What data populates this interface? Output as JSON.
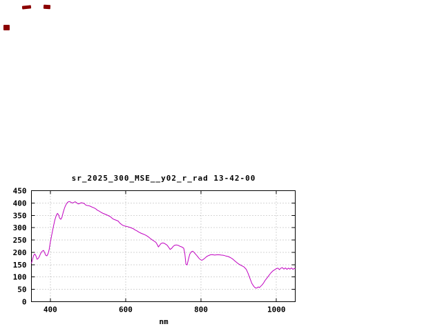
{
  "decor": {
    "artifact_color": "#8b0000"
  },
  "chart_data": {
    "type": "line",
    "title": "sr_2025_300_MSE__y02_r_rad 13-42-00",
    "xlabel": "nm",
    "ylabel": "",
    "xlim": [
      350,
      1050
    ],
    "ylim": [
      0,
      450
    ],
    "xticks": [
      400,
      600,
      800,
      1000
    ],
    "yticks": [
      0,
      50,
      100,
      150,
      200,
      250,
      300,
      350,
      400,
      450
    ],
    "grid": true,
    "legend": false,
    "line_color": "#c000c0",
    "series": [
      {
        "points": [
          [
            350,
            155
          ],
          [
            353,
            172
          ],
          [
            356,
            188
          ],
          [
            359,
            193
          ],
          [
            362,
            186
          ],
          [
            365,
            172
          ],
          [
            368,
            175
          ],
          [
            371,
            183
          ],
          [
            374,
            194
          ],
          [
            378,
            204
          ],
          [
            382,
            208
          ],
          [
            385,
            199
          ],
          [
            388,
            188
          ],
          [
            391,
            186
          ],
          [
            394,
            194
          ],
          [
            397,
            210
          ],
          [
            400,
            240
          ],
          [
            404,
            272
          ],
          [
            408,
            303
          ],
          [
            412,
            330
          ],
          [
            416,
            350
          ],
          [
            419,
            358
          ],
          [
            422,
            352
          ],
          [
            425,
            338
          ],
          [
            428,
            334
          ],
          [
            431,
            342
          ],
          [
            434,
            360
          ],
          [
            437,
            376
          ],
          [
            440,
            388
          ],
          [
            443,
            397
          ],
          [
            446,
            403
          ],
          [
            450,
            406
          ],
          [
            454,
            404
          ],
          [
            458,
            400
          ],
          [
            462,
            402
          ],
          [
            466,
            405
          ],
          [
            470,
            401
          ],
          [
            474,
            396
          ],
          [
            478,
            398
          ],
          [
            482,
            401
          ],
          [
            486,
            400
          ],
          [
            490,
            398
          ],
          [
            494,
            392
          ],
          [
            498,
            390
          ],
          [
            502,
            389
          ],
          [
            506,
            387
          ],
          [
            510,
            384
          ],
          [
            515,
            381
          ],
          [
            520,
            377
          ],
          [
            525,
            371
          ],
          [
            530,
            367
          ],
          [
            535,
            362
          ],
          [
            540,
            358
          ],
          [
            545,
            355
          ],
          [
            550,
            352
          ],
          [
            555,
            348
          ],
          [
            560,
            344
          ],
          [
            565,
            337
          ],
          [
            570,
            333
          ],
          [
            575,
            330
          ],
          [
            580,
            327
          ],
          [
            585,
            318
          ],
          [
            590,
            312
          ],
          [
            595,
            308
          ],
          [
            600,
            306
          ],
          [
            605,
            304
          ],
          [
            610,
            302
          ],
          [
            615,
            299
          ],
          [
            620,
            296
          ],
          [
            625,
            291
          ],
          [
            630,
            287
          ],
          [
            635,
            282
          ],
          [
            640,
            278
          ],
          [
            645,
            275
          ],
          [
            650,
            272
          ],
          [
            655,
            268
          ],
          [
            660,
            263
          ],
          [
            665,
            257
          ],
          [
            670,
            251
          ],
          [
            675,
            246
          ],
          [
            680,
            241
          ],
          [
            684,
            231
          ],
          [
            687,
            222
          ],
          [
            690,
            228
          ],
          [
            694,
            236
          ],
          [
            698,
            238
          ],
          [
            702,
            237
          ],
          [
            706,
            233
          ],
          [
            710,
            229
          ],
          [
            714,
            221
          ],
          [
            718,
            212
          ],
          [
            722,
            216
          ],
          [
            726,
            224
          ],
          [
            730,
            229
          ],
          [
            735,
            230
          ],
          [
            740,
            228
          ],
          [
            745,
            224
          ],
          [
            750,
            221
          ],
          [
            754,
            217
          ],
          [
            757,
            196
          ],
          [
            760,
            152
          ],
          [
            763,
            149
          ],
          [
            766,
            168
          ],
          [
            770,
            192
          ],
          [
            774,
            202
          ],
          [
            778,
            205
          ],
          [
            782,
            199
          ],
          [
            786,
            192
          ],
          [
            790,
            185
          ],
          [
            794,
            177
          ],
          [
            798,
            171
          ],
          [
            802,
            168
          ],
          [
            806,
            171
          ],
          [
            810,
            176
          ],
          [
            815,
            183
          ],
          [
            820,
            187
          ],
          [
            825,
            190
          ],
          [
            830,
            191
          ],
          [
            836,
            189
          ],
          [
            842,
            190
          ],
          [
            848,
            190
          ],
          [
            854,
            189
          ],
          [
            860,
            188
          ],
          [
            866,
            185
          ],
          [
            872,
            183
          ],
          [
            878,
            179
          ],
          [
            884,
            173
          ],
          [
            890,
            165
          ],
          [
            896,
            157
          ],
          [
            902,
            151
          ],
          [
            908,
            146
          ],
          [
            914,
            141
          ],
          [
            920,
            131
          ],
          [
            925,
            114
          ],
          [
            930,
            94
          ],
          [
            935,
            74
          ],
          [
            940,
            62
          ],
          [
            944,
            56
          ],
          [
            948,
            55
          ],
          [
            952,
            60
          ],
          [
            955,
            57
          ],
          [
            958,
            62
          ],
          [
            962,
            68
          ],
          [
            966,
            76
          ],
          [
            970,
            86
          ],
          [
            975,
            96
          ],
          [
            980,
            106
          ],
          [
            985,
            116
          ],
          [
            990,
            124
          ],
          [
            995,
            129
          ],
          [
            1000,
            134
          ],
          [
            1004,
            136
          ],
          [
            1008,
            130
          ],
          [
            1012,
            136
          ],
          [
            1016,
            138
          ],
          [
            1020,
            132
          ],
          [
            1024,
            137
          ],
          [
            1028,
            131
          ],
          [
            1032,
            136
          ],
          [
            1036,
            132
          ],
          [
            1040,
            137
          ],
          [
            1044,
            131
          ],
          [
            1048,
            135
          ],
          [
            1050,
            133
          ]
        ]
      }
    ]
  }
}
